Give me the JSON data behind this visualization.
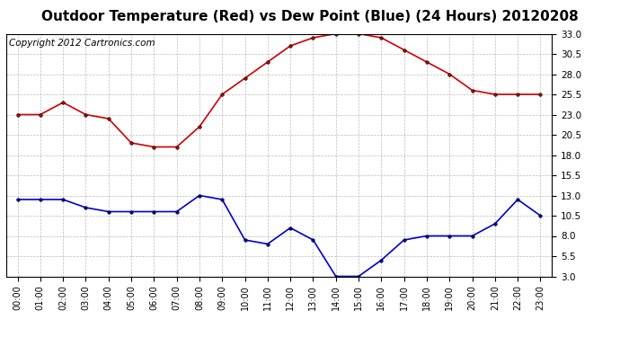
{
  "title": "Outdoor Temperature (Red) vs Dew Point (Blue) (24 Hours) 20120208",
  "copyright_text": "Copyright 2012 Cartronics.com",
  "hours": [
    "00:00",
    "01:00",
    "02:00",
    "03:00",
    "04:00",
    "05:00",
    "06:00",
    "07:00",
    "08:00",
    "09:00",
    "10:00",
    "11:00",
    "12:00",
    "13:00",
    "14:00",
    "15:00",
    "16:00",
    "17:00",
    "18:00",
    "19:00",
    "20:00",
    "21:00",
    "22:00",
    "23:00"
  ],
  "temp_red": [
    23.0,
    23.0,
    24.5,
    23.0,
    22.5,
    19.5,
    19.0,
    19.0,
    21.5,
    25.5,
    27.5,
    29.5,
    31.5,
    32.5,
    33.0,
    33.0,
    32.5,
    31.0,
    29.5,
    28.0,
    26.0,
    25.5,
    25.5,
    25.5
  ],
  "dew_blue": [
    12.5,
    12.5,
    12.5,
    11.5,
    11.0,
    11.0,
    11.0,
    11.0,
    13.0,
    12.5,
    7.5,
    7.0,
    9.0,
    7.5,
    3.0,
    3.0,
    5.0,
    7.5,
    8.0,
    8.0,
    8.0,
    9.5,
    12.5,
    10.5
  ],
  "ylim_min": 3.0,
  "ylim_max": 33.0,
  "yticks": [
    3.0,
    5.5,
    8.0,
    10.5,
    13.0,
    15.5,
    18.0,
    20.5,
    23.0,
    25.5,
    28.0,
    30.5,
    33.0
  ],
  "red_color": "#cc0000",
  "blue_color": "#0000cc",
  "bg_color": "#ffffff",
  "plot_bg_color": "#ffffff",
  "grid_color": "#aaaaaa",
  "title_fontsize": 11,
  "copyright_fontsize": 7.5
}
